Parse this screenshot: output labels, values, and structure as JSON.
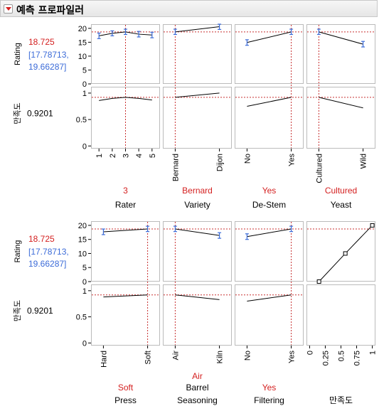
{
  "header": {
    "title": "예측 프로파일러"
  },
  "colors": {
    "red": "#d42020",
    "blue": "#3b6bd8",
    "dash": "#c83030",
    "grid": "#bbbbbb",
    "line": "#000000"
  },
  "readout": {
    "rating_label": "Rating",
    "desirability_label": "만족도",
    "rating_value": "18.725",
    "ci_line1": "[17.78713,",
    "ci_line2": "19.66287]",
    "desirability_value": "0.9201"
  },
  "chart_data": [
    {
      "type": "line",
      "panel": "top",
      "y_rating_ticks": [
        0,
        5,
        10,
        15,
        20
      ],
      "y_rating_range": [
        0,
        21.5
      ],
      "y_desirability_ticks": [
        0,
        0.5,
        1
      ],
      "y_desirability_range": [
        -0.05,
        1.12
      ],
      "rating_current": 18.725,
      "desirability_current": 0.9201,
      "factors": [
        {
          "name": "Rater",
          "current_label": "3",
          "kind": "continuous",
          "ticks": [
            "1",
            "2",
            "3",
            "4",
            "5"
          ],
          "x": [
            1,
            2,
            3,
            4,
            5
          ],
          "xlim": [
            0.4,
            5.6
          ],
          "current_x": 3,
          "rating": [
            17.3,
            18.2,
            18.725,
            17.9,
            17.6
          ],
          "rating_ci": [
            [
              16.3,
              18.3
            ],
            [
              17.3,
              19.1
            ],
            [
              17.8,
              19.7
            ],
            [
              16.9,
              18.9
            ],
            [
              16.6,
              18.6
            ]
          ],
          "desirability": [
            0.86,
            0.9,
            0.9201,
            0.9,
            0.87
          ]
        },
        {
          "name": "Variety",
          "current_label": "Bernard",
          "kind": "categorical",
          "ticks": [
            "Bernard",
            "Dijon"
          ],
          "x": [
            1,
            2
          ],
          "xlim": [
            0.72,
            2.28
          ],
          "current_x": 1,
          "rating": [
            18.725,
            20.6
          ],
          "rating_ci": [
            [
              17.8,
              19.7
            ],
            [
              19.6,
              21.5
            ]
          ],
          "desirability": [
            0.9201,
            1.0
          ]
        },
        {
          "name": "De-Stem",
          "current_label": "Yes",
          "kind": "categorical",
          "ticks": [
            "No",
            "Yes"
          ],
          "x": [
            1,
            2
          ],
          "xlim": [
            0.72,
            2.28
          ],
          "current_x": 2,
          "rating": [
            14.9,
            18.725
          ],
          "rating_ci": [
            [
              13.9,
              15.9
            ],
            [
              17.8,
              19.7
            ]
          ],
          "desirability": [
            0.75,
            0.9201
          ]
        },
        {
          "name": "Yeast",
          "current_label": "Cultured",
          "kind": "categorical",
          "ticks": [
            "Cultured",
            "Wild"
          ],
          "x": [
            1,
            2
          ],
          "xlim": [
            0.72,
            2.28
          ],
          "current_x": 1,
          "rating": [
            18.725,
            14.3
          ],
          "rating_ci": [
            [
              17.8,
              19.7
            ],
            [
              13.3,
              15.3
            ]
          ],
          "desirability": [
            0.9201,
            0.72
          ]
        }
      ]
    },
    {
      "type": "line",
      "panel": "bottom",
      "y_rating_ticks": [
        0,
        5,
        10,
        15,
        20
      ],
      "y_rating_range": [
        0,
        21.5
      ],
      "y_desirability_ticks": [
        0,
        0.5,
        1
      ],
      "y_desirability_range": [
        -0.05,
        1.12
      ],
      "rating_current": 18.725,
      "desirability_current": 0.9201,
      "factors": [
        {
          "name": "Press",
          "current_label": "Soft",
          "kind": "categorical",
          "ticks": [
            "Hard",
            "Soft"
          ],
          "x": [
            1,
            2
          ],
          "xlim": [
            0.72,
            2.28
          ],
          "current_x": 2,
          "rating": [
            17.7,
            18.725
          ],
          "rating_ci": [
            [
              16.7,
              18.7
            ],
            [
              17.8,
              19.7
            ]
          ],
          "desirability": [
            0.88,
            0.9201
          ]
        },
        {
          "name": "Barrel Seasoning",
          "name_line1": "Barrel",
          "name_line2": "Seasoning",
          "current_label": "Air",
          "kind": "categorical",
          "ticks": [
            "Air",
            "Kiln"
          ],
          "x": [
            1,
            2
          ],
          "xlim": [
            0.72,
            2.28
          ],
          "current_x": 1,
          "rating": [
            18.725,
            16.4
          ],
          "rating_ci": [
            [
              17.8,
              19.7
            ],
            [
              15.4,
              17.4
            ]
          ],
          "desirability": [
            0.9201,
            0.83
          ]
        },
        {
          "name": "Filtering",
          "current_label": "Yes",
          "kind": "categorical",
          "ticks": [
            "No",
            "Yes"
          ],
          "x": [
            1,
            2
          ],
          "xlim": [
            0.72,
            2.28
          ],
          "current_x": 2,
          "rating": [
            16.0,
            18.725
          ],
          "rating_ci": [
            [
              15.0,
              17.0
            ],
            [
              17.8,
              19.7
            ]
          ],
          "desirability": [
            0.8,
            0.9201
          ]
        }
      ],
      "desirability_function": {
        "name": "만족도",
        "ticks": [
          "0",
          "0.25",
          "0.5",
          "0.75",
          "1"
        ],
        "xlim": [
          -0.05,
          1.05
        ],
        "points": [
          {
            "x": 0.15,
            "y": 0
          },
          {
            "x": 0.57,
            "y": 10
          },
          {
            "x": 1.0,
            "y": 20
          }
        ],
        "current_y": 18.725
      }
    }
  ]
}
